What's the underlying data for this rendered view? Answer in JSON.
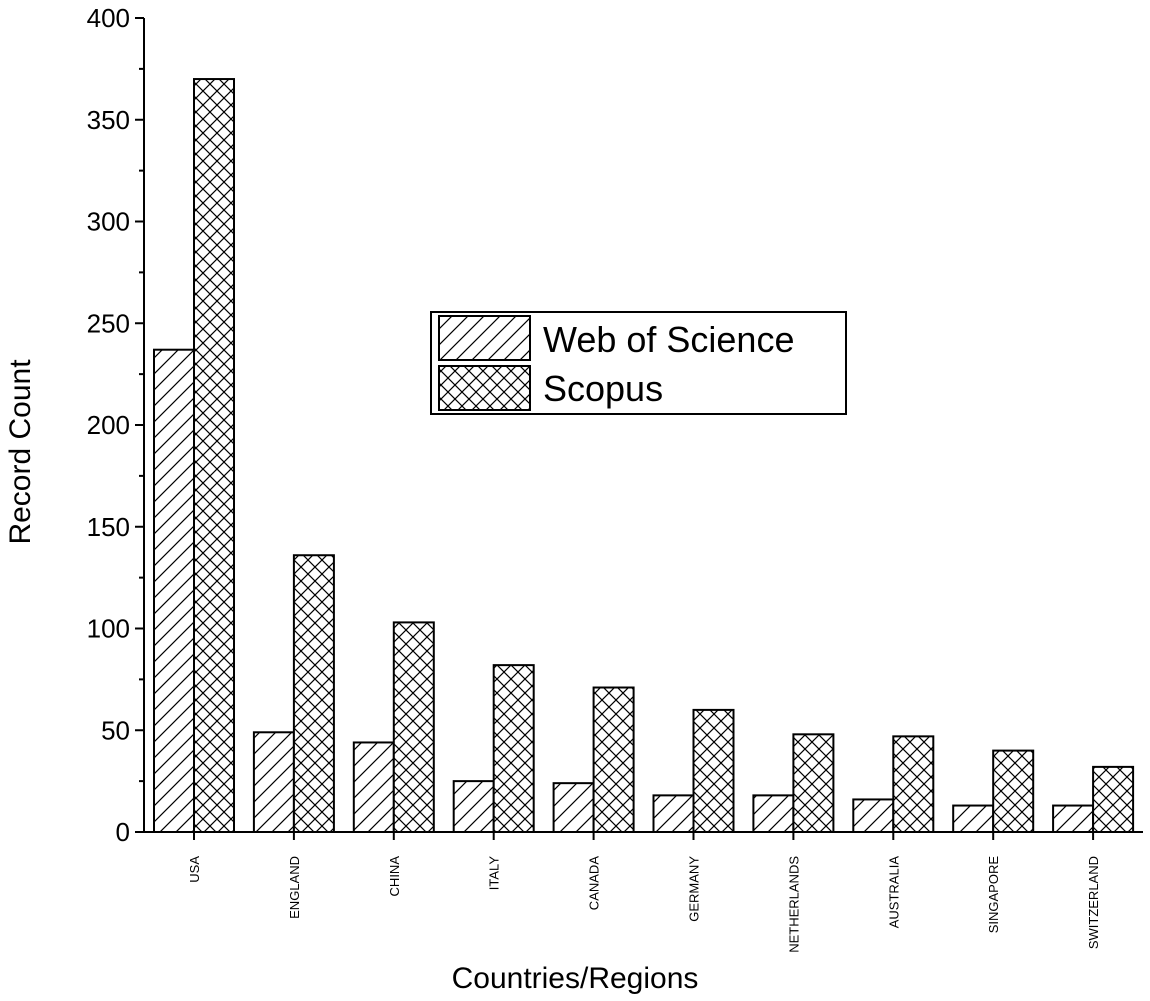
{
  "chart_data": {
    "type": "bar",
    "title": "",
    "xlabel": "Countries/Regions",
    "ylabel": "Record Count",
    "ylim": [
      0,
      400
    ],
    "yticks": [
      0,
      50,
      100,
      150,
      200,
      250,
      300,
      350,
      400
    ],
    "categories": [
      "USA",
      "ENGLAND",
      "CHINA",
      "ITALY",
      "CANADA",
      "GERMANY",
      "NETHERLANDS",
      "AUSTRALIA",
      "SINGAPORE",
      "SWITZERLAND"
    ],
    "series": [
      {
        "name": "Web of Science",
        "pattern": "diagonal-hatch",
        "values": [
          237,
          49,
          44,
          25,
          24,
          18,
          18,
          16,
          13,
          13
        ]
      },
      {
        "name": "Scopus",
        "pattern": "cross-hatch",
        "values": [
          370,
          136,
          103,
          82,
          71,
          60,
          48,
          47,
          40,
          32
        ]
      }
    ],
    "legend_position": "center",
    "grid": false,
    "colors": {
      "bar_stroke": "#000000",
      "bar_fill": "#ffffff",
      "hatch": "#000000"
    }
  }
}
